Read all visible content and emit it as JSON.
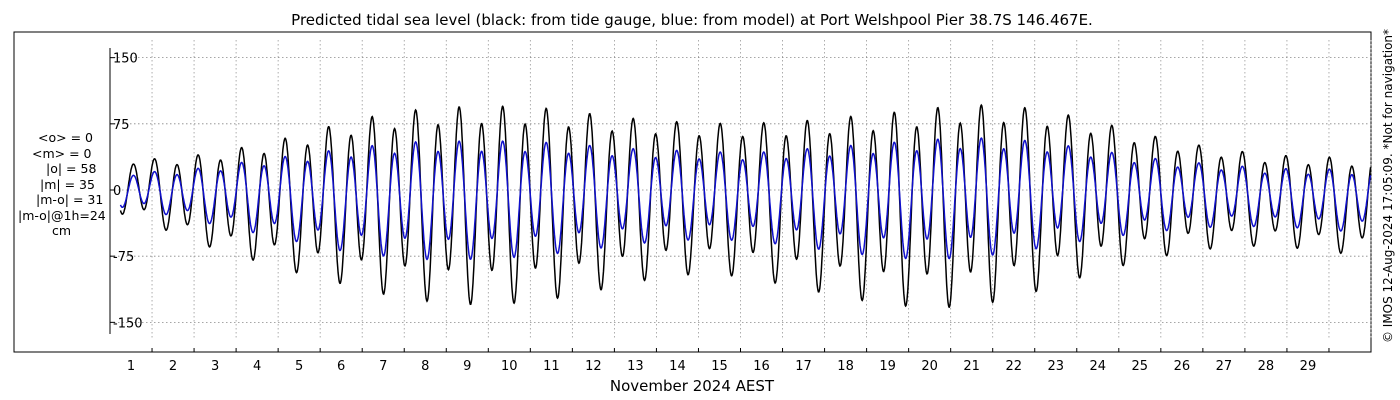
{
  "chart_data": {
    "type": "line",
    "title": "Predicted tidal sea level (black: from tide gauge, blue: from model) at Port Welshpool Pier 38.7S 146.467E.",
    "xlabel": "November 2024 AEST",
    "ylabel": "",
    "x_tick_labels": [
      "1",
      "2",
      "3",
      "4",
      "5",
      "6",
      "7",
      "8",
      "9",
      "10",
      "11",
      "12",
      "13",
      "14",
      "15",
      "16",
      "17",
      "18",
      "19",
      "20",
      "21",
      "22",
      "23",
      "24",
      "25",
      "26",
      "27",
      "28",
      "29"
    ],
    "y_ticks": [
      150,
      75,
      0,
      -75,
      -150
    ],
    "y_tick_labels": [
      "150",
      "75",
      "0",
      "-75",
      "-150"
    ],
    "xlim_days": [
      0.0,
      30.0
    ],
    "ylim": [
      -170,
      170
    ],
    "grid": true,
    "series": [
      {
        "name": "from tide gauge",
        "color": "#000000",
        "day_range": [
          0.25,
          30.0
        ],
        "daily_high": [
          38,
          40,
          48,
          58,
          70,
          85,
          96,
          103,
          106,
          106,
          103,
          96,
          90,
          86,
          84,
          85,
          88,
          93,
          98,
          104,
          108,
          106,
          98,
          86,
          72,
          60,
          52,
          45,
          43,
          42
        ],
        "daily_low": [
          -28,
          -50,
          -68,
          -82,
          -96,
          -108,
          -120,
          -128,
          -132,
          -131,
          -126,
          -117,
          -106,
          -98,
          -97,
          -104,
          -114,
          -124,
          -132,
          -136,
          -134,
          -125,
          -110,
          -95,
          -82,
          -72,
          -66,
          -64,
          -68,
          -74
        ]
      },
      {
        "name": "from model",
        "color": "#1010cc",
        "day_range": [
          0.25,
          30.0
        ],
        "daily_high": [
          22,
          24,
          30,
          38,
          45,
          52,
          58,
          62,
          62,
          62,
          60,
          56,
          52,
          50,
          48,
          48,
          52,
          56,
          60,
          64,
          66,
          64,
          58,
          50,
          42,
          36,
          32,
          28,
          27,
          27
        ],
        "daily_low": [
          -20,
          -30,
          -40,
          -50,
          -60,
          -70,
          -76,
          -80,
          -80,
          -78,
          -74,
          -68,
          -62,
          -58,
          -57,
          -60,
          -66,
          -72,
          -78,
          -80,
          -78,
          -72,
          -64,
          -56,
          -50,
          -45,
          -42,
          -42,
          -44,
          -48
        ]
      }
    ]
  },
  "stats": {
    "mean_obs": "<o> = 0",
    "mean_model": "<m> = 0",
    "abs_obs": "|o| = 58",
    "abs_model": "|m| = 35",
    "abs_diff": "|m-o| = 31",
    "abs_diff_1h": "|m-o|@1h=24",
    "unit": "cm"
  },
  "credit": "© IMOS 12-Aug-2024 17:05:09. *Not for navigation*"
}
